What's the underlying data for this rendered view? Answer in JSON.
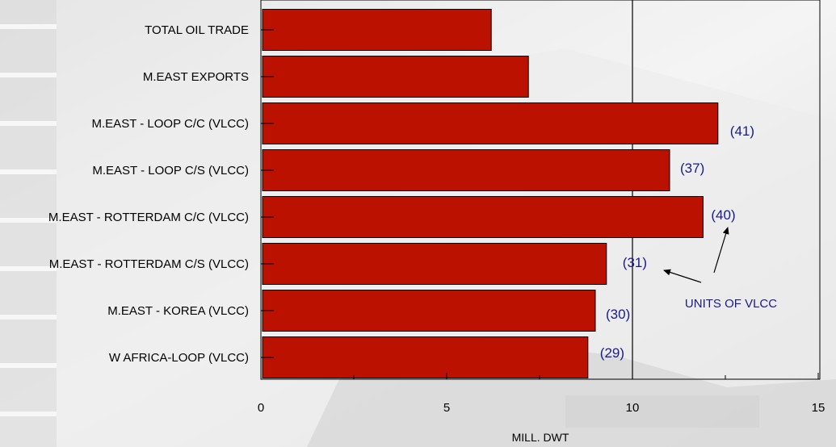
{
  "chart_data": {
    "type": "bar",
    "orientation": "horizontal",
    "categories": [
      "TOTAL OIL TRADE",
      "M.EAST EXPORTS",
      "M.EAST - LOOP C/C (VLCC)",
      "M.EAST - LOOP C/S (VLCC)",
      "M.EAST - ROTTERDAM C/C (VLCC)",
      "M.EAST - ROTTERDAM C/S (VLCC)",
      "M.EAST - KOREA (VLCC)",
      "W AFRICA-LOOP (VLCC)"
    ],
    "values": [
      6.2,
      7.2,
      12.3,
      11.0,
      11.9,
      9.3,
      9.0,
      8.8
    ],
    "data_labels": [
      "",
      "",
      "(41)",
      "(37)",
      "(40)",
      "(31)",
      "(30)",
      "(29)"
    ],
    "xlim": [
      0,
      15
    ],
    "xticks": [
      0,
      5,
      10,
      15
    ],
    "xlabel": "MILL. DWT",
    "reference_line": 10,
    "annotation": "UNITS OF VLCC",
    "bar_color": "#bb1100",
    "annotation_color": "#1a1a8a",
    "grid": false
  }
}
